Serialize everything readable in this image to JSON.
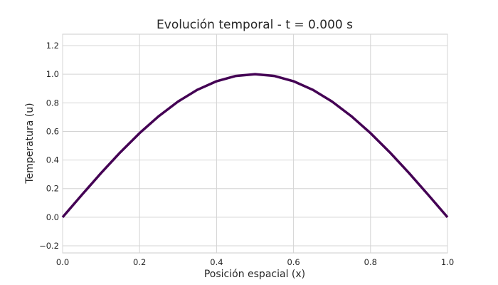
{
  "chart_data": {
    "type": "line",
    "title": "Evolución temporal - t = 0.000 s",
    "xlabel": "Posición espacial (x)",
    "ylabel": "Temperatura (u)",
    "xlim": [
      0.0,
      1.0
    ],
    "ylim": [
      -0.25,
      1.28
    ],
    "x_ticks": [
      "0.0",
      "0.2",
      "0.4",
      "0.6",
      "0.8",
      "1.0"
    ],
    "y_ticks": [
      "−0.2",
      "0.0",
      "0.2",
      "0.4",
      "0.6",
      "0.8",
      "1.0",
      "1.2"
    ],
    "grid": true,
    "line_color": "#440154",
    "series": [
      {
        "x": [
          0.0,
          0.05,
          0.1,
          0.15,
          0.2,
          0.25,
          0.3,
          0.35,
          0.4,
          0.45,
          0.5,
          0.55,
          0.6,
          0.65,
          0.7,
          0.75,
          0.8,
          0.85,
          0.9,
          0.95,
          1.0
        ],
        "values": [
          0.0,
          0.156,
          0.309,
          0.454,
          0.588,
          0.707,
          0.809,
          0.891,
          0.951,
          0.988,
          1.0,
          0.988,
          0.951,
          0.891,
          0.809,
          0.707,
          0.588,
          0.454,
          0.309,
          0.156,
          0.0
        ]
      }
    ]
  }
}
